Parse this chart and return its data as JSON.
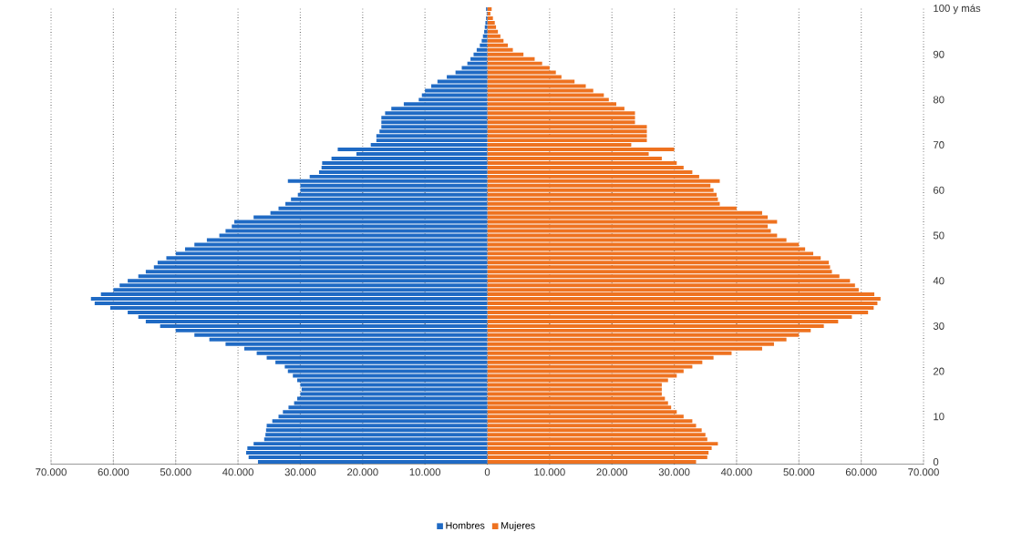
{
  "chart_data": {
    "type": "bar",
    "orientation": "horizontal",
    "categories": [
      "100 y más",
      null,
      null,
      null,
      null,
      null,
      null,
      null,
      null,
      null,
      "90",
      null,
      null,
      null,
      null,
      null,
      null,
      null,
      null,
      null,
      "80",
      null,
      null,
      null,
      null,
      null,
      null,
      null,
      null,
      null,
      "70",
      null,
      null,
      null,
      null,
      null,
      null,
      null,
      null,
      null,
      "60",
      null,
      null,
      null,
      null,
      null,
      null,
      null,
      null,
      null,
      "50",
      null,
      null,
      null,
      null,
      null,
      null,
      null,
      null,
      null,
      "40",
      null,
      null,
      null,
      null,
      null,
      null,
      null,
      null,
      null,
      "30",
      null,
      null,
      null,
      null,
      null,
      null,
      null,
      null,
      null,
      "20",
      null,
      null,
      null,
      null,
      null,
      null,
      null,
      null,
      null,
      "10",
      null,
      null,
      null,
      null,
      null,
      null,
      null,
      null,
      null,
      "0"
    ],
    "series": [
      {
        "name": "Hombres",
        "color": "#1f6ac4",
        "values": [
          -200,
          -100,
          -200,
          -300,
          -400,
          -500,
          -700,
          -900,
          -1200,
          -1700,
          -2200,
          -2700,
          -3200,
          -4100,
          -5100,
          -6500,
          -8000,
          -9000,
          -10000,
          -10500,
          -11000,
          -13400,
          -15400,
          -16400,
          -17000,
          -17000,
          -17000,
          -17300,
          -17800,
          -17800,
          -18700,
          -24000,
          -21000,
          -25000,
          -26500,
          -26600,
          -27000,
          -28500,
          -32000,
          -30000,
          -30000,
          -30400,
          -31500,
          -32400,
          -33500,
          -34800,
          -37500,
          -40600,
          -41000,
          -42000,
          -43000,
          -45000,
          -47000,
          -48500,
          -50000,
          -51500,
          -52900,
          -53500,
          -54800,
          -56000,
          -57700,
          -59000,
          -60000,
          -62000,
          -63600,
          -63000,
          -60500,
          -57700,
          -56000,
          -54800,
          -52500,
          -50000,
          -47000,
          -44600,
          -42000,
          -39000,
          -37000,
          -35400,
          -34000,
          -32500,
          -32000,
          -31200,
          -30500,
          -30000,
          -29800,
          -30000,
          -30500,
          -31000,
          -31900,
          -32800,
          -33500,
          -34500,
          -35400,
          -35500,
          -35600,
          -35800,
          -37500,
          -38500,
          -38700,
          -38300,
          -36800
        ]
      },
      {
        "name": "Mujeres",
        "color": "#ee7220",
        "values": [
          700,
          500,
          900,
          1200,
          1400,
          1700,
          2100,
          2600,
          3300,
          4100,
          5800,
          7600,
          8800,
          10000,
          11000,
          11900,
          14000,
          15800,
          17000,
          18700,
          19500,
          20700,
          22000,
          23700,
          23700,
          23700,
          25600,
          25600,
          25600,
          25600,
          23100,
          30000,
          25900,
          28000,
          30400,
          31500,
          32900,
          34000,
          37300,
          35800,
          36300,
          36800,
          37000,
          37300,
          40000,
          44100,
          45000,
          46500,
          45000,
          45500,
          46500,
          48000,
          50000,
          51000,
          52300,
          53500,
          54800,
          55000,
          55300,
          56500,
          58200,
          59000,
          59600,
          62100,
          63100,
          62600,
          62000,
          61100,
          58500,
          56300,
          54000,
          51900,
          50000,
          48000,
          46000,
          44100,
          39200,
          36300,
          34500,
          32900,
          31500,
          30400,
          29000,
          28000,
          28000,
          28000,
          28500,
          29000,
          29500,
          30400,
          31500,
          32900,
          33500,
          34400,
          35000,
          35300,
          37000,
          36000,
          35500,
          35300,
          33500
        ]
      }
    ],
    "xlim": [
      -70000,
      70000
    ],
    "xticks": [
      {
        "value": -70000,
        "label": "70.000"
      },
      {
        "value": -60000,
        "label": "60.000"
      },
      {
        "value": -50000,
        "label": "50.000"
      },
      {
        "value": -40000,
        "label": "40.000"
      },
      {
        "value": -30000,
        "label": "30.000"
      },
      {
        "value": -20000,
        "label": "20.000"
      },
      {
        "value": -10000,
        "label": "10.000"
      },
      {
        "value": 0,
        "label": "0"
      },
      {
        "value": 10000,
        "label": "10.000"
      },
      {
        "value": 20000,
        "label": "20.000"
      },
      {
        "value": 30000,
        "label": "30.000"
      },
      {
        "value": 40000,
        "label": "40.000"
      },
      {
        "value": 50000,
        "label": "50.000"
      },
      {
        "value": 60000,
        "label": "60.000"
      },
      {
        "value": 70000,
        "label": "70.000"
      }
    ],
    "stacked": true,
    "grid": "x",
    "legend": "bottom"
  }
}
